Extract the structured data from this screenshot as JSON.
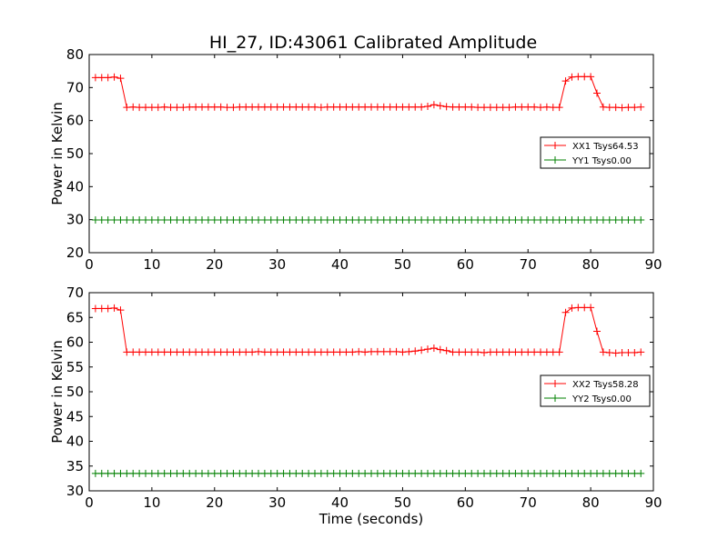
{
  "chart_data": [
    {
      "type": "line",
      "title": "HI_27, ID:43061 Calibrated Amplitude",
      "xlabel": "",
      "ylabel": "Power in Kelvin",
      "xlim": [
        0,
        90
      ],
      "ylim": [
        20,
        80
      ],
      "xticks": [
        "0",
        "10",
        "20",
        "30",
        "40",
        "50",
        "60",
        "70",
        "80",
        "90"
      ],
      "yticks": [
        "20",
        "30",
        "40",
        "50",
        "60",
        "70",
        "80"
      ],
      "grid": false,
      "legend": "center-right",
      "x": [
        1,
        2,
        3,
        4,
        5,
        6,
        7,
        8,
        9,
        10,
        11,
        12,
        13,
        14,
        15,
        16,
        17,
        18,
        19,
        20,
        21,
        22,
        23,
        24,
        25,
        26,
        27,
        28,
        29,
        30,
        31,
        32,
        33,
        34,
        35,
        36,
        37,
        38,
        39,
        40,
        41,
        42,
        43,
        44,
        45,
        46,
        47,
        48,
        49,
        50,
        51,
        52,
        53,
        54,
        55,
        56,
        57,
        58,
        59,
        60,
        61,
        62,
        63,
        64,
        65,
        66,
        67,
        68,
        69,
        70,
        71,
        72,
        73,
        74,
        75,
        76,
        77,
        78,
        79,
        80,
        81,
        82,
        83,
        84,
        85,
        86,
        87,
        88
      ],
      "series": [
        {
          "name": "XX1 Tsys64.53",
          "color": "#ff0000",
          "values": [
            73,
            73,
            73,
            73.2,
            72.8,
            64,
            64.1,
            64,
            64,
            64,
            64,
            64.1,
            64,
            64,
            64,
            64.1,
            64.1,
            64.1,
            64.1,
            64.1,
            64.1,
            64,
            64,
            64.1,
            64.1,
            64.1,
            64.1,
            64.1,
            64.1,
            64.1,
            64.1,
            64.1,
            64.1,
            64.1,
            64.1,
            64.1,
            64,
            64.1,
            64.1,
            64.1,
            64.1,
            64.1,
            64.1,
            64.1,
            64.1,
            64.1,
            64.1,
            64.1,
            64.1,
            64.1,
            64.1,
            64.1,
            64.1,
            64.3,
            64.8,
            64.5,
            64.2,
            64.1,
            64.1,
            64.1,
            64.1,
            64,
            64,
            64,
            64,
            64,
            64,
            64.1,
            64.1,
            64.1,
            64.1,
            64,
            64.1,
            64,
            64,
            72,
            73.2,
            73.3,
            73.3,
            73.3,
            68.3,
            64.1,
            64,
            64,
            63.9,
            64,
            64,
            64.1
          ]
        },
        {
          "name": "YY1 Tsys0.00",
          "color": "#008000",
          "values": [
            29.9,
            29.9,
            29.9,
            29.9,
            29.9,
            29.9,
            29.9,
            29.9,
            29.9,
            29.9,
            29.9,
            29.9,
            29.9,
            29.9,
            29.9,
            29.9,
            29.9,
            29.9,
            29.9,
            29.9,
            29.9,
            29.9,
            29.9,
            29.9,
            29.9,
            29.9,
            29.9,
            29.9,
            29.9,
            29.9,
            29.9,
            29.9,
            29.9,
            29.9,
            29.9,
            29.9,
            29.9,
            29.9,
            29.9,
            29.9,
            29.9,
            29.9,
            29.9,
            29.9,
            29.9,
            29.9,
            29.9,
            29.9,
            29.9,
            29.9,
            29.9,
            29.9,
            29.9,
            29.9,
            29.9,
            29.9,
            29.9,
            29.9,
            29.9,
            29.9,
            29.9,
            29.9,
            29.9,
            29.9,
            29.9,
            29.9,
            29.9,
            29.9,
            29.9,
            29.9,
            29.9,
            29.9,
            29.9,
            29.9,
            29.9,
            29.9,
            29.9,
            29.9,
            29.9,
            29.9,
            29.9,
            29.9,
            29.9,
            29.9,
            29.9,
            29.9,
            29.9,
            29.9
          ]
        }
      ]
    },
    {
      "type": "line",
      "title": "",
      "xlabel": "Time (seconds)",
      "ylabel": "Power in Kelvin",
      "xlim": [
        0,
        90
      ],
      "ylim": [
        30,
        70
      ],
      "xticks": [
        "0",
        "10",
        "20",
        "30",
        "40",
        "50",
        "60",
        "70",
        "80",
        "90"
      ],
      "yticks": [
        "30",
        "35",
        "40",
        "45",
        "50",
        "55",
        "60",
        "65",
        "70"
      ],
      "grid": false,
      "legend": "center-right",
      "x": [
        1,
        2,
        3,
        4,
        5,
        6,
        7,
        8,
        9,
        10,
        11,
        12,
        13,
        14,
        15,
        16,
        17,
        18,
        19,
        20,
        21,
        22,
        23,
        24,
        25,
        26,
        27,
        28,
        29,
        30,
        31,
        32,
        33,
        34,
        35,
        36,
        37,
        38,
        39,
        40,
        41,
        42,
        43,
        44,
        45,
        46,
        47,
        48,
        49,
        50,
        51,
        52,
        53,
        54,
        55,
        56,
        57,
        58,
        59,
        60,
        61,
        62,
        63,
        64,
        65,
        66,
        67,
        68,
        69,
        70,
        71,
        72,
        73,
        74,
        75,
        76,
        77,
        78,
        79,
        80,
        81,
        82,
        83,
        84,
        85,
        86,
        87,
        88
      ],
      "series": [
        {
          "name": "XX2 Tsys58.28",
          "color": "#ff0000",
          "values": [
            66.8,
            66.8,
            66.8,
            66.9,
            66.5,
            58,
            58,
            58,
            58,
            58,
            58,
            58,
            58,
            58,
            58,
            58,
            58,
            58,
            58,
            58,
            58,
            58,
            58,
            58,
            58,
            58,
            58.1,
            58,
            58,
            58,
            58,
            58,
            58,
            58,
            58,
            58,
            58,
            58,
            58,
            58,
            58,
            58,
            58.1,
            58,
            58.1,
            58.1,
            58.1,
            58.1,
            58.1,
            58,
            58.1,
            58.2,
            58.4,
            58.6,
            58.8,
            58.5,
            58.3,
            58,
            58,
            58,
            58,
            58,
            57.9,
            58,
            58,
            58,
            58,
            58,
            58,
            58,
            58,
            58,
            58,
            58,
            58,
            66,
            66.9,
            67,
            67,
            67,
            62.2,
            58,
            57.9,
            57.8,
            57.9,
            57.9,
            57.9,
            58
          ]
        },
        {
          "name": "YY2 Tsys0.00",
          "color": "#008000",
          "values": [
            33.5,
            33.5,
            33.5,
            33.5,
            33.5,
            33.5,
            33.5,
            33.5,
            33.5,
            33.5,
            33.5,
            33.5,
            33.5,
            33.5,
            33.5,
            33.5,
            33.5,
            33.5,
            33.5,
            33.5,
            33.5,
            33.5,
            33.5,
            33.5,
            33.5,
            33.5,
            33.5,
            33.5,
            33.5,
            33.5,
            33.5,
            33.5,
            33.5,
            33.5,
            33.5,
            33.5,
            33.5,
            33.5,
            33.5,
            33.5,
            33.5,
            33.5,
            33.5,
            33.5,
            33.5,
            33.5,
            33.5,
            33.5,
            33.5,
            33.5,
            33.5,
            33.5,
            33.5,
            33.5,
            33.5,
            33.5,
            33.5,
            33.5,
            33.5,
            33.5,
            33.5,
            33.5,
            33.5,
            33.5,
            33.5,
            33.5,
            33.5,
            33.5,
            33.5,
            33.5,
            33.5,
            33.5,
            33.5,
            33.5,
            33.5,
            33.5,
            33.5,
            33.5,
            33.5,
            33.5,
            33.5,
            33.5,
            33.5,
            33.5,
            33.5,
            33.5,
            33.5,
            33.5
          ]
        }
      ]
    }
  ]
}
